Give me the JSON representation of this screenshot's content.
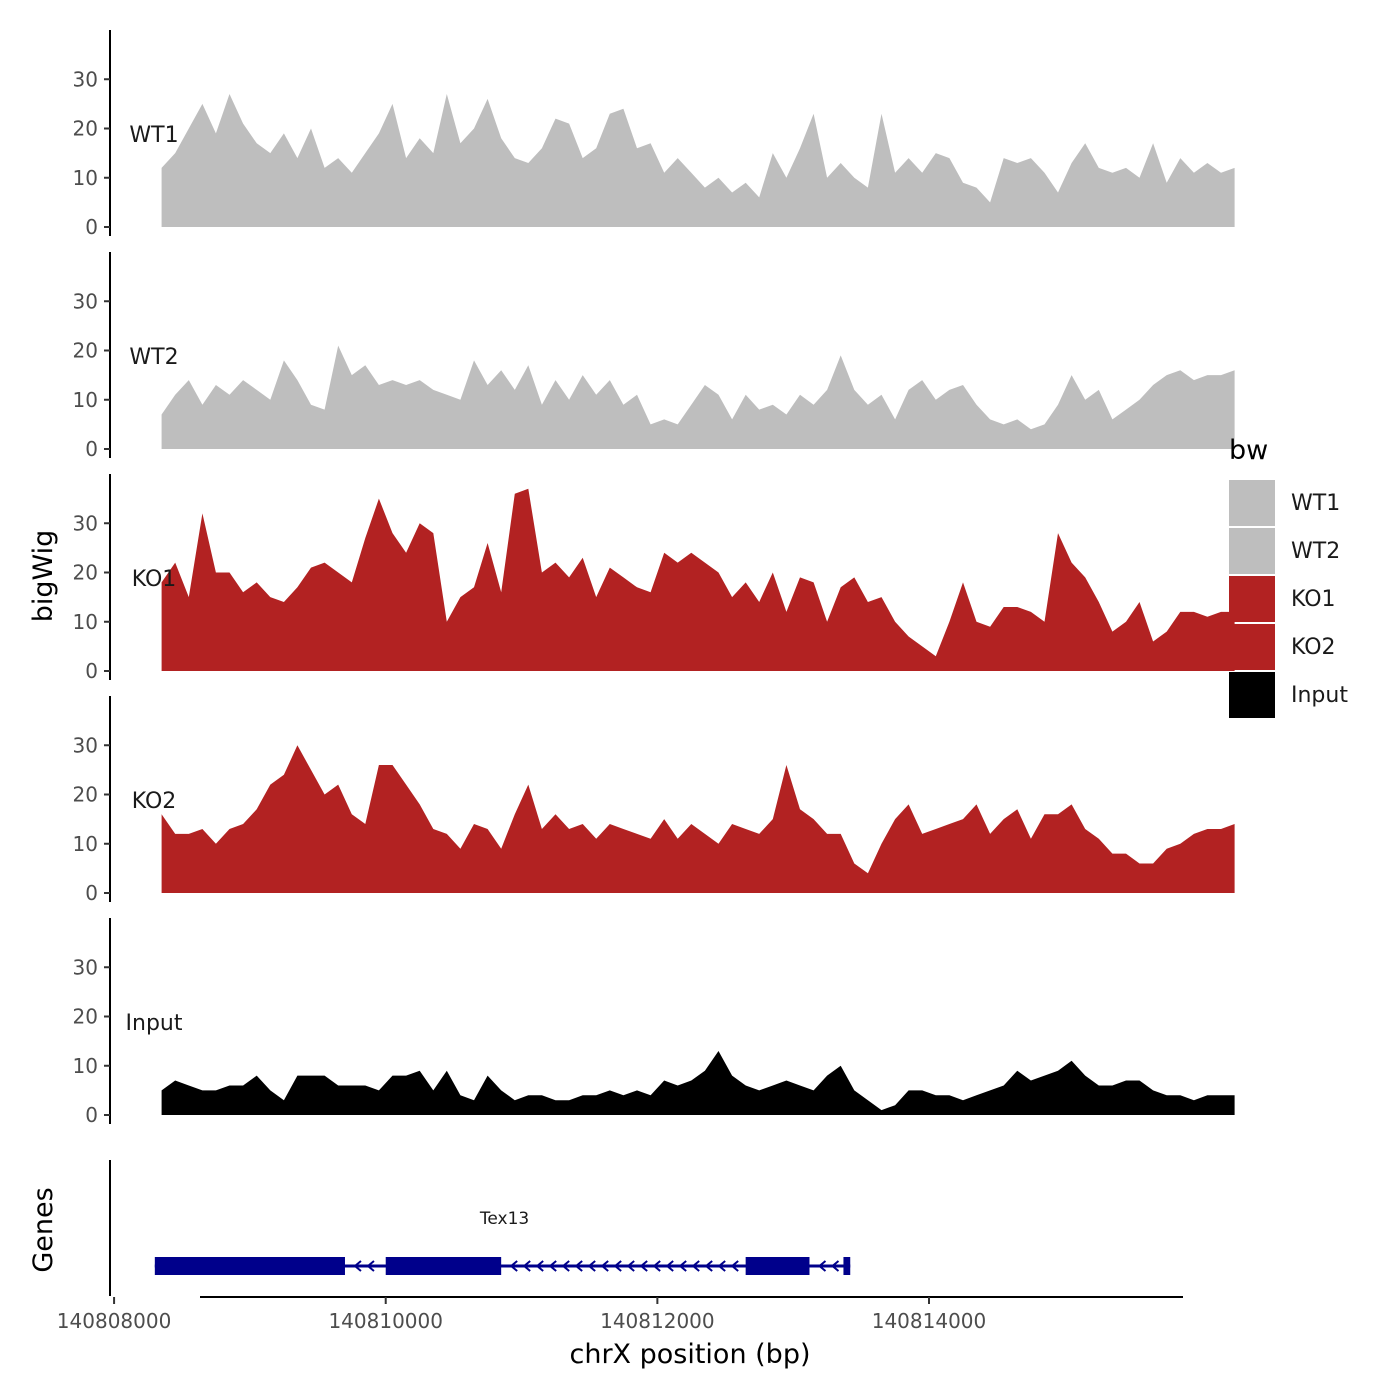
{
  "chart_data": {
    "type": "area",
    "y_axis_title": "bigWig",
    "x_axis_title": "chrX position (bp)",
    "genes_title": "Genes",
    "xlim": [
      140807970,
      140815870
    ],
    "ylim": [
      0,
      40
    ],
    "y_ticks": [
      0,
      10,
      20,
      30
    ],
    "x_ticks": [
      {
        "value": 140808000,
        "label": "140808000"
      },
      {
        "value": 140810000,
        "label": "140810000"
      },
      {
        "value": 140812000,
        "label": "140812000"
      },
      {
        "value": 140814000,
        "label": "140814000"
      }
    ],
    "x_start": 140808350,
    "x_step": 100,
    "tracks": [
      {
        "name": "WT1",
        "color": "#bebebe",
        "values": [
          12,
          15,
          20,
          25,
          19,
          27,
          21,
          17,
          15,
          19,
          14,
          20,
          12,
          14,
          11,
          15,
          19,
          25,
          14,
          18,
          15,
          27,
          17,
          20,
          26,
          18,
          14,
          13,
          16,
          22,
          21,
          14,
          16,
          23,
          24,
          16,
          17,
          11,
          14,
          11,
          8,
          10,
          7,
          9,
          6,
          15,
          10,
          16,
          23,
          10,
          13,
          10,
          8,
          23,
          11,
          14,
          11,
          15,
          14,
          9,
          8,
          5,
          14,
          13,
          14,
          11,
          7,
          13,
          17,
          12,
          11,
          12,
          10,
          17,
          9,
          14,
          11,
          13,
          11,
          12
        ]
      },
      {
        "name": "WT2",
        "color": "#bebebe",
        "values": [
          7,
          11,
          14,
          9,
          13,
          11,
          14,
          12,
          10,
          18,
          14,
          9,
          8,
          21,
          15,
          17,
          13,
          14,
          13,
          14,
          12,
          11,
          10,
          18,
          13,
          16,
          12,
          17,
          9,
          14,
          10,
          15,
          11,
          14,
          9,
          11,
          5,
          6,
          5,
          9,
          13,
          11,
          6,
          11,
          8,
          9,
          7,
          11,
          9,
          12,
          19,
          12,
          9,
          11,
          6,
          12,
          14,
          10,
          12,
          13,
          9,
          6,
          5,
          6,
          4,
          5,
          9,
          15,
          10,
          12,
          6,
          8,
          10,
          13,
          15,
          16,
          14,
          15,
          15,
          16
        ]
      },
      {
        "name": "KO1",
        "color": "#b22222",
        "values": [
          18,
          22,
          15,
          32,
          20,
          20,
          16,
          18,
          15,
          14,
          17,
          21,
          22,
          20,
          18,
          27,
          35,
          28,
          24,
          30,
          28,
          10,
          15,
          17,
          26,
          16,
          36,
          37,
          20,
          22,
          19,
          23,
          15,
          21,
          19,
          17,
          16,
          24,
          22,
          24,
          22,
          20,
          15,
          18,
          14,
          20,
          12,
          19,
          18,
          10,
          17,
          19,
          14,
          15,
          10,
          7,
          5,
          3,
          10,
          18,
          10,
          9,
          13,
          13,
          12,
          10,
          28,
          22,
          19,
          14,
          8,
          10,
          14,
          6,
          8,
          12,
          12,
          11,
          12,
          12
        ]
      },
      {
        "name": "KO2",
        "color": "#b22222",
        "values": [
          16,
          12,
          12,
          13,
          10,
          13,
          14,
          17,
          22,
          24,
          30,
          25,
          20,
          22,
          16,
          14,
          26,
          26,
          22,
          18,
          13,
          12,
          9,
          14,
          13,
          9,
          16,
          22,
          13,
          16,
          13,
          14,
          11,
          14,
          13,
          12,
          11,
          15,
          11,
          14,
          12,
          10,
          14,
          13,
          12,
          15,
          26,
          17,
          15,
          12,
          12,
          6,
          4,
          10,
          15,
          18,
          12,
          13,
          14,
          15,
          18,
          12,
          15,
          17,
          11,
          16,
          16,
          18,
          13,
          11,
          8,
          8,
          6,
          6,
          9,
          10,
          12,
          13,
          13,
          14
        ]
      },
      {
        "name": "Input",
        "color": "#000000",
        "values": [
          5,
          7,
          6,
          5,
          5,
          6,
          6,
          8,
          5,
          3,
          8,
          8,
          8,
          6,
          6,
          6,
          5,
          8,
          8,
          9,
          5,
          9,
          4,
          3,
          8,
          5,
          3,
          4,
          4,
          3,
          3,
          4,
          4,
          5,
          4,
          5,
          4,
          7,
          6,
          7,
          9,
          13,
          8,
          6,
          5,
          6,
          7,
          6,
          5,
          8,
          10,
          5,
          3,
          1,
          2,
          5,
          5,
          4,
          4,
          3,
          4,
          5,
          6,
          9,
          7,
          8,
          9,
          11,
          8,
          6,
          6,
          7,
          7,
          5,
          4,
          4,
          3,
          4,
          4,
          4
        ]
      }
    ],
    "legend": {
      "title": "bw",
      "position": "right",
      "entries": [
        {
          "label": "WT1",
          "color": "#bebebe"
        },
        {
          "label": "WT2",
          "color": "#bebebe"
        },
        {
          "label": "KO1",
          "color": "#b22222"
        },
        {
          "label": "KO2",
          "color": "#b22222"
        },
        {
          "label": "Input",
          "color": "#000000"
        }
      ]
    },
    "gene": {
      "name": "Tex13",
      "color": "#00008b",
      "strand": "-",
      "start": 140808300,
      "end": 140813420,
      "exons": [
        [
          140808300,
          140809700
        ],
        [
          140810000,
          140810850
        ],
        [
          140812650,
          140813120
        ],
        [
          140813370,
          140813420
        ]
      ]
    }
  }
}
